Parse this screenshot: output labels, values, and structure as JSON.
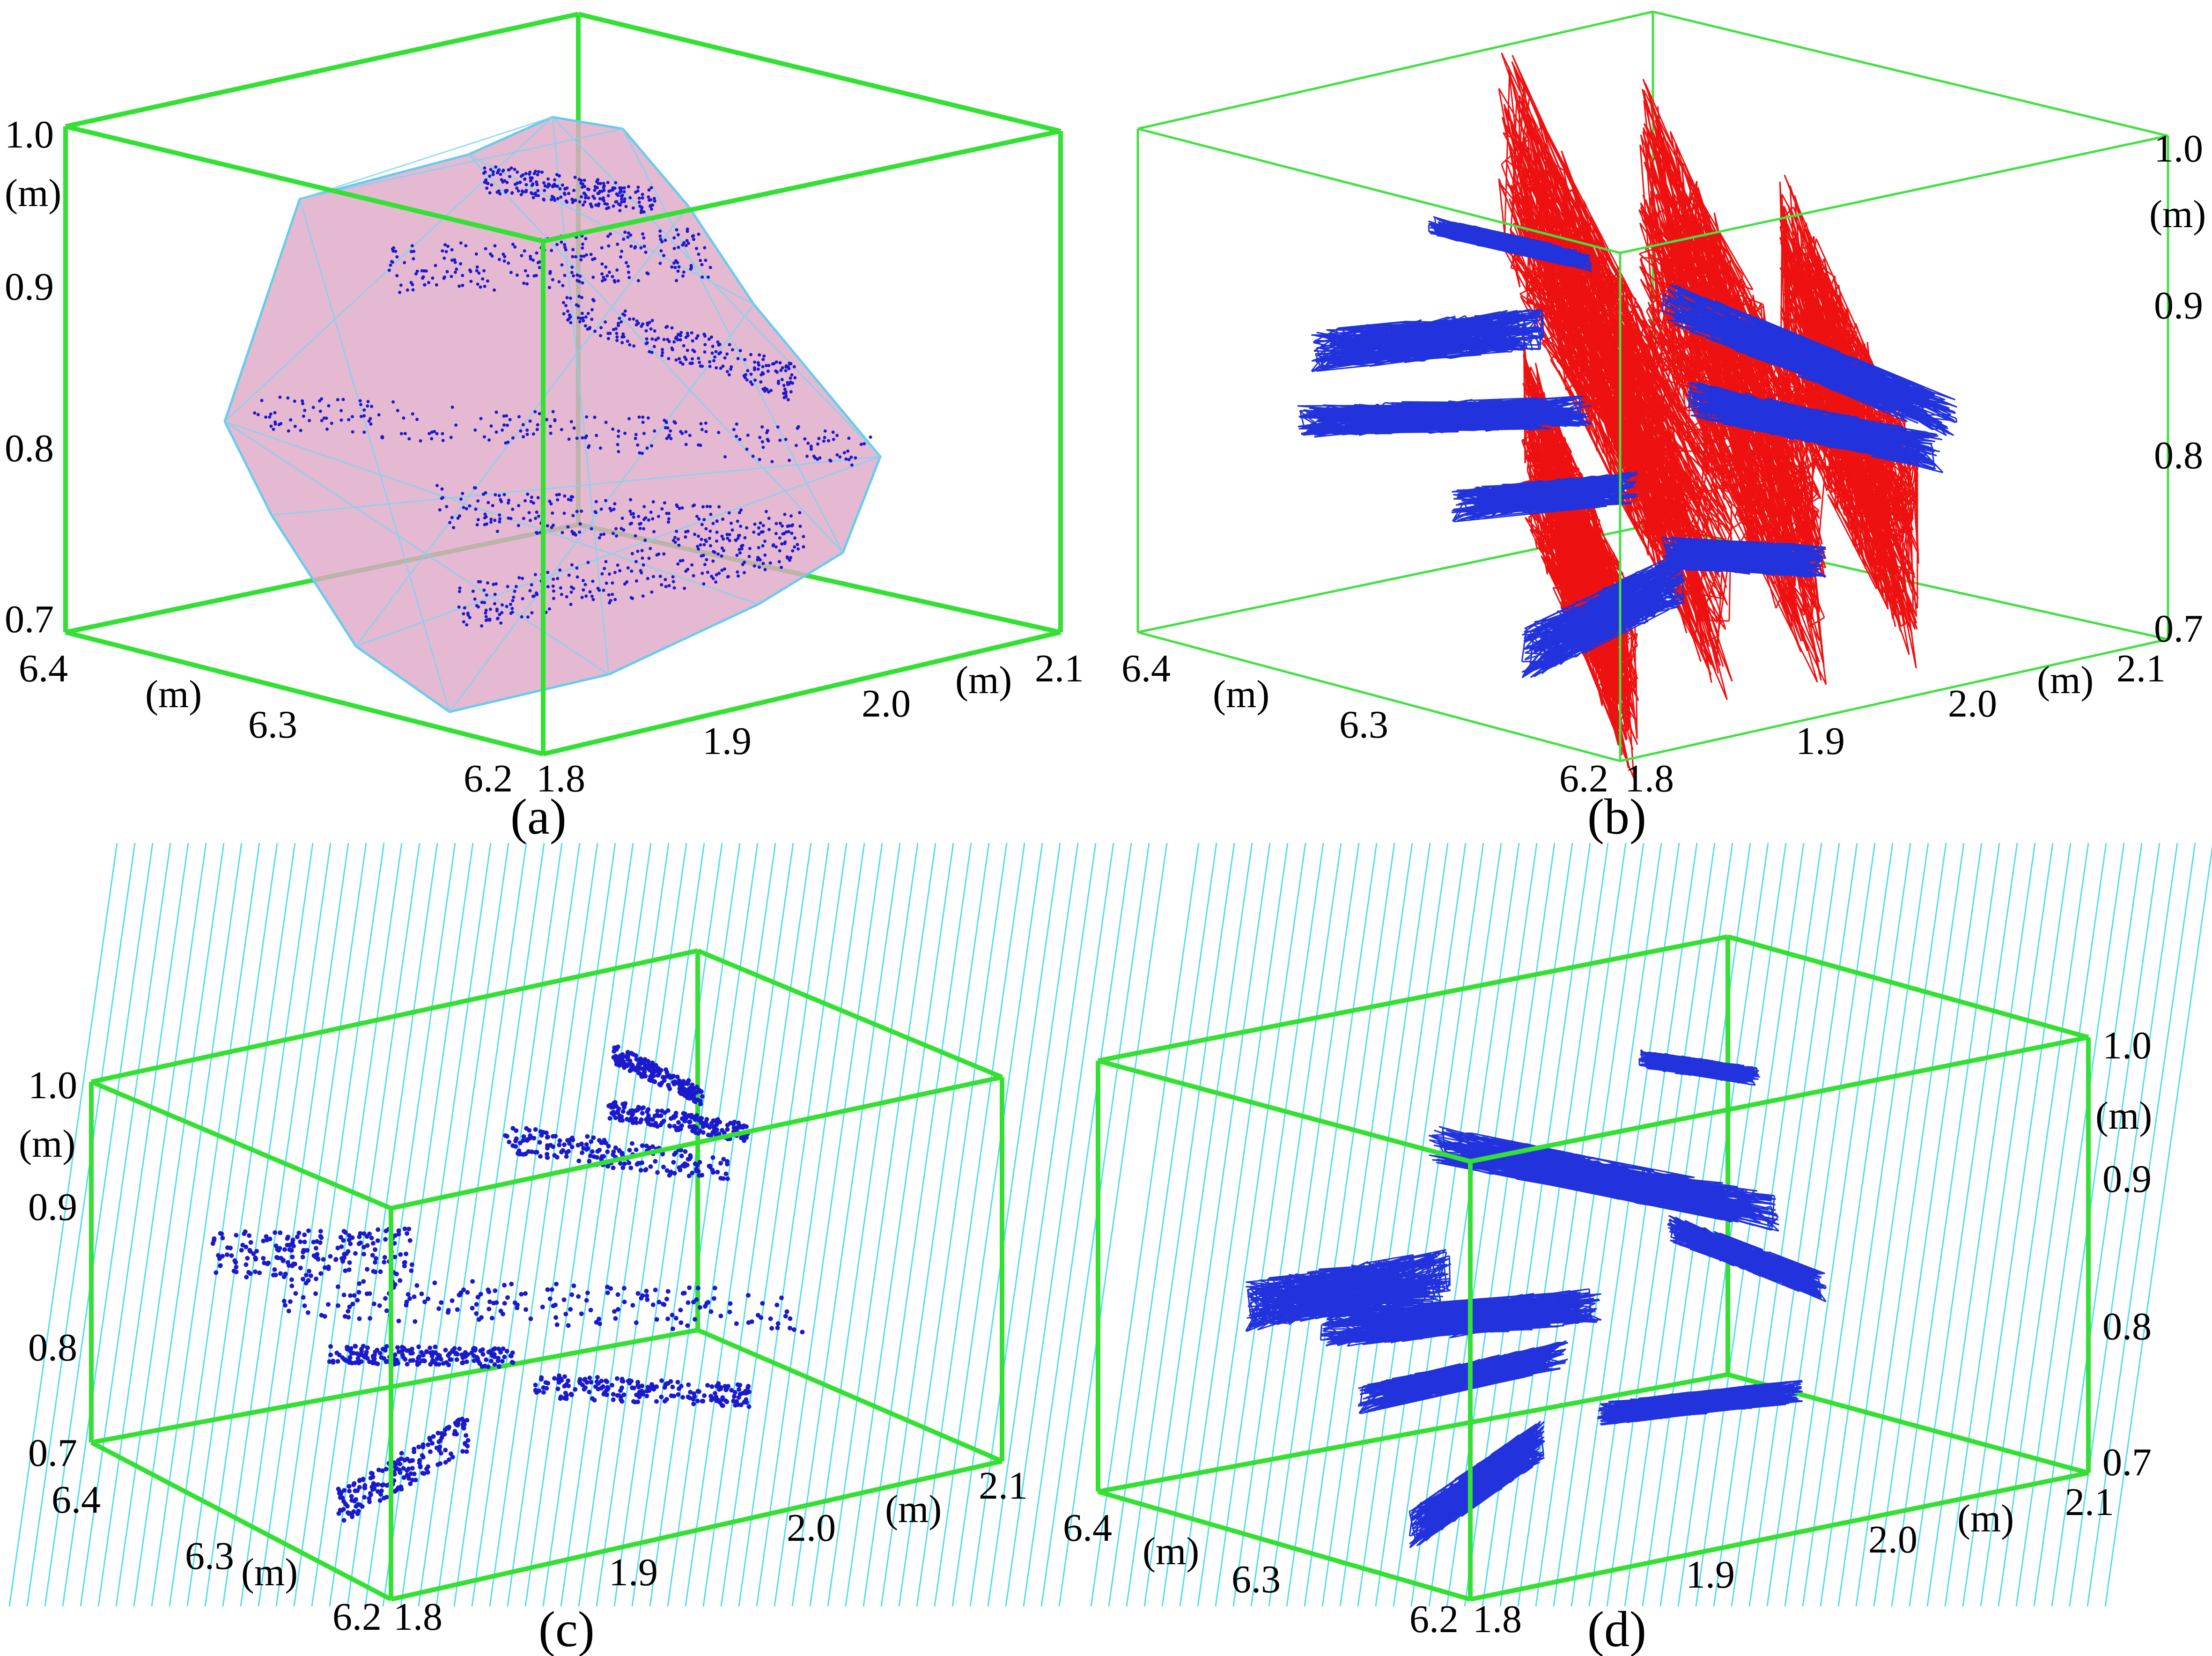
{
  "panels": [
    {
      "caption": "(a)",
      "z_ticks": [
        "1.0",
        "0.9",
        "0.8",
        "0.7"
      ],
      "z_unit": "(m)",
      "x_ticks": [
        "6.4",
        "6.3",
        "6.2"
      ],
      "x_unit": "(m)",
      "y_ticks": [
        "1.8",
        "1.9",
        "2.0",
        "2.1"
      ],
      "y_unit": "(m)"
    },
    {
      "caption": "(b)",
      "z_ticks": [
        "1.0",
        "0.9",
        "0.8",
        "0.7"
      ],
      "z_unit": "(m)",
      "x_ticks": [
        "6.4",
        "6.3",
        "6.2"
      ],
      "x_unit": "(m)",
      "y_ticks": [
        "1.8",
        "1.9",
        "2.0",
        "2.1"
      ],
      "y_unit": "(m)"
    },
    {
      "caption": "(c)",
      "z_ticks": [
        "1.0",
        "0.9",
        "0.8",
        "0.7"
      ],
      "z_unit": "(m)",
      "x_ticks": [
        "6.4",
        "6.3",
        "6.2"
      ],
      "x_unit": "(m)",
      "y_ticks": [
        "1.8",
        "1.9",
        "2.0",
        "2.1"
      ],
      "y_unit": "(m)"
    },
    {
      "caption": "(d)",
      "z_ticks": [
        "1.0",
        "0.9",
        "0.8",
        "0.7"
      ],
      "z_unit": "(m)",
      "x_ticks": [
        "6.4",
        "6.3",
        "6.2"
      ],
      "x_unit": "(m)",
      "y_ticks": [
        "1.8",
        "1.9",
        "2.0",
        "2.1"
      ],
      "y_unit": "(m)"
    }
  ],
  "colors": {
    "box": "#33e033",
    "points": "#1a1acc",
    "mesh": "#2233dd",
    "hull_fill": "#e0a8c8",
    "hull_edge": "#66ccee",
    "red_links": "#ee1111",
    "arrows": "#55ddee"
  }
}
